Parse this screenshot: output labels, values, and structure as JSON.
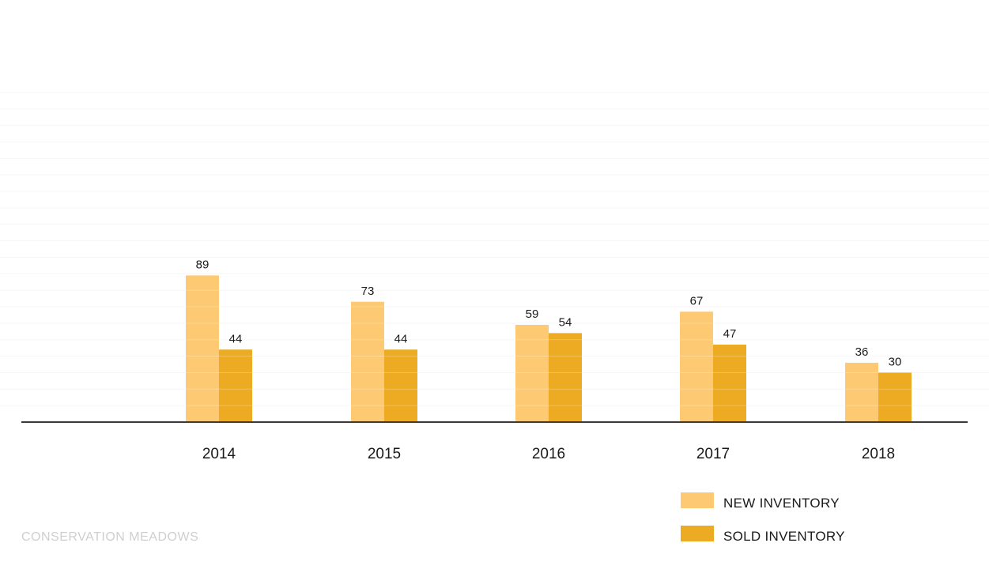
{
  "chart_data": {
    "type": "bar",
    "categories": [
      "2014",
      "2015",
      "2016",
      "2017",
      "2018"
    ],
    "series": [
      {
        "name": "NEW INVENTORY",
        "values": [
          89,
          73,
          59,
          67,
          36
        ],
        "color": "#fdca73"
      },
      {
        "name": "SOLD INVENTORY",
        "values": [
          44,
          44,
          54,
          47,
          30
        ],
        "color": "#edab23"
      }
    ],
    "ylim": [
      0,
      200
    ],
    "grid": true,
    "legend": "bottom-right",
    "axis_color": "#3a3a3a",
    "grid_color": "#f6f6f6"
  },
  "footer": {
    "source": "CONSERVATION MEADOWS"
  }
}
